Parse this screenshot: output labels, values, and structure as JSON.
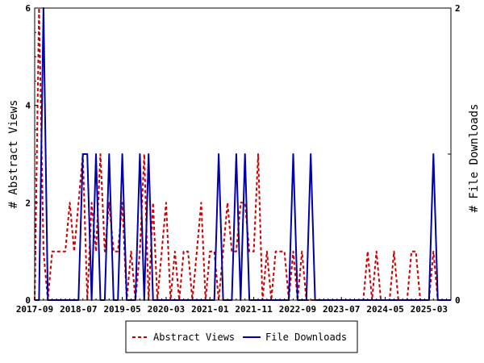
{
  "chart_data": {
    "type": "line",
    "x_axis": {
      "tick_labels": [
        "2017-09",
        "2018-07",
        "2019-05",
        "2020-03",
        "2021-01",
        "2021-11",
        "2022-09",
        "2023-07",
        "2024-05",
        "2025-03"
      ],
      "range_months": [
        "2017-09",
        "2025-08"
      ]
    },
    "y_left": {
      "label": "# Abstract Views",
      "ylim": [
        0,
        6
      ],
      "ticks": [
        "0",
        "2",
        "4",
        "6"
      ]
    },
    "y_right": {
      "label": "# File Downloads",
      "ylim": [
        0,
        2
      ],
      "ticks": [
        "0",
        "1",
        "2"
      ]
    },
    "legend_position": "bottom-center",
    "grid": false,
    "series": [
      {
        "name": "Abstract Views",
        "axis": "left",
        "color": "#cc0000",
        "style": "dashed",
        "x": [
          "2017-09",
          "2017-10",
          "2017-11",
          "2017-12",
          "2018-01",
          "2018-02",
          "2018-03",
          "2018-04",
          "2018-05",
          "2018-06",
          "2018-07",
          "2018-08",
          "2018-09",
          "2018-10",
          "2018-11",
          "2018-12",
          "2019-01",
          "2019-02",
          "2019-03",
          "2019-04",
          "2019-05",
          "2019-06",
          "2019-07",
          "2019-08",
          "2019-09",
          "2019-10",
          "2019-11",
          "2019-12",
          "2020-01",
          "2020-02",
          "2020-03",
          "2020-04",
          "2020-05",
          "2020-06",
          "2020-07",
          "2020-08",
          "2020-09",
          "2020-10",
          "2020-11",
          "2020-12",
          "2021-01",
          "2021-02",
          "2021-03",
          "2021-04",
          "2021-05",
          "2021-06",
          "2021-07",
          "2021-08",
          "2021-09",
          "2021-10",
          "2021-11",
          "2021-12",
          "2022-01",
          "2022-02",
          "2022-03",
          "2022-04",
          "2022-05",
          "2022-06",
          "2022-07",
          "2022-08",
          "2022-09",
          "2022-10",
          "2022-11",
          "2022-12",
          "2023-01",
          "2023-02",
          "2023-03",
          "2023-04",
          "2023-05",
          "2023-06",
          "2023-07",
          "2023-08",
          "2023-09",
          "2023-10",
          "2023-11",
          "2023-12",
          "2024-01",
          "2024-02",
          "2024-03",
          "2024-04",
          "2024-05",
          "2024-06",
          "2024-07",
          "2024-08",
          "2024-09",
          "2024-10",
          "2024-11",
          "2024-12",
          "2025-01",
          "2025-02",
          "2025-03",
          "2025-04",
          "2025-05",
          "2025-06",
          "2025-07",
          "2025-08"
        ],
        "values": [
          0,
          6,
          1,
          0,
          1,
          1,
          1,
          1,
          2,
          1,
          2,
          3,
          0,
          2,
          1,
          3,
          1,
          2,
          1,
          1,
          2,
          0,
          1,
          0,
          1,
          3,
          0,
          2,
          0,
          1,
          2,
          0,
          1,
          0,
          1,
          1,
          0,
          1,
          2,
          0,
          1,
          1,
          0,
          1,
          2,
          1,
          1,
          2,
          2,
          1,
          1,
          3,
          0,
          1,
          0,
          1,
          1,
          1,
          0,
          1,
          0,
          1,
          0,
          0,
          0,
          0,
          0,
          0,
          0,
          0,
          0,
          0,
          0,
          0,
          0,
          0,
          1,
          0,
          1,
          0,
          0,
          0,
          1,
          0,
          0,
          0,
          1,
          1,
          0,
          0,
          0,
          1,
          0,
          0,
          0,
          0
        ]
      },
      {
        "name": "File Downloads",
        "axis": "right",
        "color": "#0000aa",
        "style": "solid",
        "x": [
          "2017-09",
          "2017-10",
          "2017-11",
          "2017-12",
          "2018-01",
          "2018-02",
          "2018-03",
          "2018-04",
          "2018-05",
          "2018-06",
          "2018-07",
          "2018-08",
          "2018-09",
          "2018-10",
          "2018-11",
          "2018-12",
          "2019-01",
          "2019-02",
          "2019-03",
          "2019-04",
          "2019-05",
          "2019-06",
          "2019-07",
          "2019-08",
          "2019-09",
          "2019-10",
          "2019-11",
          "2019-12",
          "2020-01",
          "2020-02",
          "2020-03",
          "2020-04",
          "2020-05",
          "2020-06",
          "2020-07",
          "2020-08",
          "2020-09",
          "2020-10",
          "2020-11",
          "2020-12",
          "2021-01",
          "2021-02",
          "2021-03",
          "2021-04",
          "2021-05",
          "2021-06",
          "2021-07",
          "2021-08",
          "2021-09",
          "2021-10",
          "2021-11",
          "2021-12",
          "2022-01",
          "2022-02",
          "2022-03",
          "2022-04",
          "2022-05",
          "2022-06",
          "2022-07",
          "2022-08",
          "2022-09",
          "2022-10",
          "2022-11",
          "2022-12",
          "2023-01",
          "2023-02",
          "2023-03",
          "2023-04",
          "2023-05",
          "2023-06",
          "2023-07",
          "2023-08",
          "2023-09",
          "2023-10",
          "2023-11",
          "2023-12",
          "2024-01",
          "2024-02",
          "2024-03",
          "2024-04",
          "2024-05",
          "2024-06",
          "2024-07",
          "2024-08",
          "2024-09",
          "2024-10",
          "2024-11",
          "2024-12",
          "2025-01",
          "2025-02",
          "2025-03",
          "2025-04",
          "2025-05",
          "2025-06",
          "2025-07",
          "2025-08"
        ],
        "values": [
          0,
          0,
          2,
          0,
          0,
          0,
          0,
          0,
          0,
          0,
          0,
          1,
          1,
          0,
          1,
          0,
          0,
          1,
          0,
          0,
          1,
          0,
          0,
          0,
          1,
          0,
          1,
          0,
          0,
          0,
          0,
          0,
          0,
          0,
          0,
          0,
          0,
          0,
          0,
          0,
          0,
          0,
          1,
          0,
          0,
          0,
          1,
          0,
          1,
          0,
          0,
          0,
          0,
          0,
          0,
          0,
          0,
          0,
          0,
          1,
          0,
          0,
          0,
          1,
          0,
          0,
          0,
          0,
          0,
          0,
          0,
          0,
          0,
          0,
          0,
          0,
          0,
          0,
          0,
          0,
          0,
          0,
          0,
          0,
          0,
          0,
          0,
          0,
          0,
          0,
          0,
          1,
          0,
          0,
          0,
          0
        ]
      }
    ]
  }
}
